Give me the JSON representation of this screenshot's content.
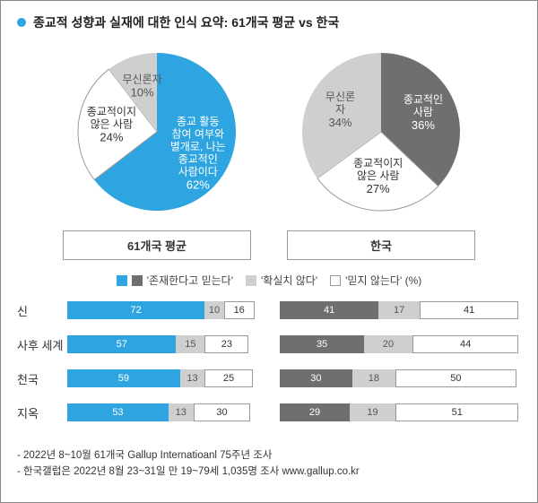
{
  "colors": {
    "blue": "#2ea5e0",
    "darkgray": "#6f6f6f",
    "lightgray": "#cfcfcf",
    "white": "#ffffff",
    "border": "#999999"
  },
  "title": "종교적 성향과 실재에 대한 인식 요약: 61개국 평균 vs 한국",
  "pies": {
    "left": {
      "title": "61개국 평균",
      "slices": [
        {
          "label": "종교 활동\n참여 여부와\n별개로, 나는\n종교적인\n사람이다",
          "pct": 62,
          "color": "#2ea5e0",
          "textcolor": "#ffffff"
        },
        {
          "label": "종교적이지\n않은 사람",
          "pct": 24,
          "color": "#ffffff",
          "textcolor": "#333333",
          "stroke": "#999999"
        },
        {
          "label": "무신론자",
          "pct": 10,
          "color": "#cfcfcf",
          "textcolor": "#555555"
        }
      ]
    },
    "right": {
      "title": "한국",
      "slices": [
        {
          "label": "종교적인\n사람",
          "pct": 36,
          "color": "#6f6f6f",
          "textcolor": "#ffffff"
        },
        {
          "label": "종교적이지\n않은 사람",
          "pct": 27,
          "color": "#ffffff",
          "textcolor": "#333333",
          "stroke": "#999999"
        },
        {
          "label": "무신론\n자",
          "pct": 34,
          "color": "#cfcfcf",
          "textcolor": "#555555"
        }
      ]
    }
  },
  "legend": [
    {
      "color_left": "#2ea5e0",
      "color_right": "#6f6f6f",
      "text": "'존재한다고 믿는다'"
    },
    {
      "color": "#cfcfcf",
      "text": "'확실치 않다'"
    },
    {
      "color": "#ffffff",
      "stroke": "#999999",
      "text": "'믿지 않는다' (%)"
    }
  ],
  "bars": {
    "rows": [
      "신",
      "사후 세계",
      "천국",
      "지옥"
    ],
    "left": [
      {
        "believe": 72,
        "unsure": 10,
        "no": 16
      },
      {
        "believe": 57,
        "unsure": 15,
        "no": 23
      },
      {
        "believe": 59,
        "unsure": 13,
        "no": 25
      },
      {
        "believe": 53,
        "unsure": 13,
        "no": 30
      }
    ],
    "right": [
      {
        "believe": 41,
        "unsure": 17,
        "no": 41
      },
      {
        "believe": 35,
        "unsure": 20,
        "no": 44
      },
      {
        "believe": 30,
        "unsure": 18,
        "no": 50
      },
      {
        "believe": 29,
        "unsure": 19,
        "no": 51
      }
    ]
  },
  "footnotes": [
    "- 2022년 8~10월 61개국 Gallup Internatioanl 75주년 조사",
    "- 한국갤럽은 2022년 8월 23~31일 만 19~79세 1,035명 조사 www.gallup.co.kr"
  ]
}
